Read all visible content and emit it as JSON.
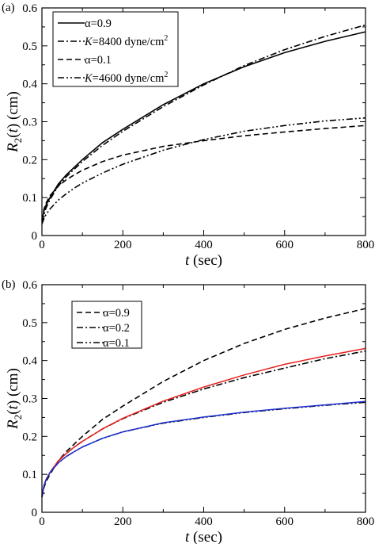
{
  "chart_data": [
    {
      "type": "line",
      "panel_label": "(a)",
      "xlabel": "t (sec)",
      "ylabel": "R2(t) (cm)",
      "xlim": [
        0,
        800
      ],
      "ylim": [
        0,
        0.6
      ],
      "x_ticks": [
        "0",
        "200",
        "400",
        "600",
        "800"
      ],
      "y_ticks": [
        "0",
        "0.1",
        "0.2",
        "0.3",
        "0.4",
        "0.5",
        "0.6"
      ],
      "grid": false,
      "legend_position": "top-left",
      "x": [
        0,
        5,
        10,
        20,
        40,
        60,
        80,
        100,
        150,
        200,
        300,
        400,
        500,
        600,
        700,
        800
      ],
      "series": [
        {
          "name": "α=0.9",
          "label_symbol": "α",
          "label_value": "=0.9",
          "dash": "solid",
          "color": "#000000",
          "values": [
            0.04,
            0.065,
            0.08,
            0.1,
            0.135,
            0.16,
            0.18,
            0.2,
            0.245,
            0.28,
            0.345,
            0.4,
            0.445,
            0.482,
            0.512,
            0.537
          ]
        },
        {
          "name": "K=8400 dyne/cm2",
          "label_symbol": "K",
          "label_value": "=8400 dyne/cm",
          "label_sup": "2",
          "dash": "dashdot",
          "color": "#000000",
          "values": [
            0.035,
            0.055,
            0.072,
            0.095,
            0.13,
            0.155,
            0.175,
            0.195,
            0.238,
            0.275,
            0.34,
            0.397,
            0.448,
            0.49,
            0.525,
            0.555
          ]
        },
        {
          "name": "α=0.1",
          "label_symbol": "α",
          "label_value": "=0.1",
          "dash": "dashed",
          "color": "#000000",
          "values": [
            0.04,
            0.07,
            0.085,
            0.105,
            0.13,
            0.147,
            0.16,
            0.172,
            0.195,
            0.212,
            0.235,
            0.25,
            0.263,
            0.273,
            0.282,
            0.29
          ]
        },
        {
          "name": "K=4600 dyne/cm2",
          "label_symbol": "K",
          "label_value": "=4600 dyne/cm",
          "label_sup": "2",
          "dash": "dashdotdot",
          "color": "#000000",
          "values": [
            0.03,
            0.045,
            0.055,
            0.07,
            0.093,
            0.11,
            0.125,
            0.138,
            0.165,
            0.188,
            0.225,
            0.253,
            0.275,
            0.29,
            0.302,
            0.31
          ]
        }
      ]
    },
    {
      "type": "line",
      "panel_label": "(b)",
      "xlabel": "t (sec)",
      "ylabel": "R2(t) (cm)",
      "xlim": [
        0,
        800
      ],
      "ylim": [
        0,
        0.6
      ],
      "x_ticks": [
        "0",
        "200",
        "400",
        "600",
        "800"
      ],
      "y_ticks": [
        "0",
        "0.1",
        "0.2",
        "0.3",
        "0.4",
        "0.5",
        "0.6"
      ],
      "grid": false,
      "legend_position": "top-left",
      "x": [
        0,
        5,
        10,
        20,
        40,
        60,
        80,
        100,
        150,
        200,
        300,
        400,
        500,
        600,
        700,
        800
      ],
      "series": [
        {
          "name": "α=0.9",
          "label_symbol": "α",
          "label_value": "=0.9",
          "dash": "dashed",
          "color": "#000000",
          "values": [
            0.04,
            0.065,
            0.08,
            0.1,
            0.135,
            0.16,
            0.18,
            0.2,
            0.245,
            0.28,
            0.345,
            0.4,
            0.445,
            0.482,
            0.512,
            0.537
          ]
        },
        {
          "name": "α=0.2",
          "label_symbol": "α",
          "label_value": "=0.2",
          "dash": "dashdot",
          "color": "#000000",
          "values": [
            0.045,
            0.07,
            0.085,
            0.105,
            0.135,
            0.155,
            0.172,
            0.187,
            0.22,
            0.247,
            0.29,
            0.325,
            0.355,
            0.38,
            0.405,
            0.425
          ]
        },
        {
          "name": "α=0.1",
          "label_symbol": "α",
          "label_value": "=0.1",
          "dash": "dashdotdot",
          "color": "#000000",
          "values": [
            0.04,
            0.07,
            0.085,
            0.105,
            0.13,
            0.147,
            0.16,
            0.172,
            0.195,
            0.212,
            0.235,
            0.25,
            0.263,
            0.273,
            0.282,
            0.29
          ]
        },
        {
          "name": "fit (red)",
          "dash": "solid",
          "color": "#e8211f",
          "values": [
            0.045,
            0.07,
            0.085,
            0.105,
            0.135,
            0.155,
            0.172,
            0.187,
            0.22,
            0.248,
            0.293,
            0.33,
            0.362,
            0.39,
            0.412,
            0.432
          ]
        },
        {
          "name": "fit (blue)",
          "dash": "solid",
          "color": "#1f2fd0",
          "values": [
            0.04,
            0.07,
            0.085,
            0.105,
            0.13,
            0.147,
            0.16,
            0.172,
            0.195,
            0.212,
            0.236,
            0.251,
            0.264,
            0.274,
            0.283,
            0.292
          ]
        }
      ]
    }
  ]
}
